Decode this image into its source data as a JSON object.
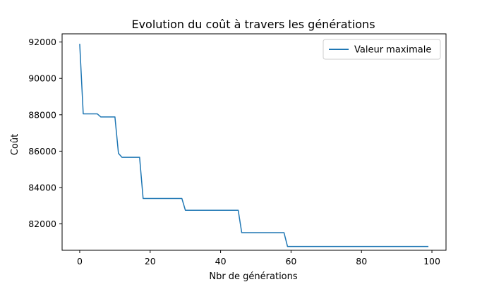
{
  "chart_data": {
    "type": "line",
    "title": "Evolution du coût à travers les générations",
    "xlabel": "Nbr de générations",
    "ylabel": "Coût",
    "xlim": [
      -5,
      104
    ],
    "ylim": [
      80550,
      92450
    ],
    "x_ticks": [
      0,
      20,
      40,
      60,
      80,
      100
    ],
    "x_tick_labels": [
      "0",
      "20",
      "40",
      "60",
      "80",
      "100"
    ],
    "y_ticks": [
      82000,
      84000,
      86000,
      88000,
      90000,
      92000
    ],
    "y_tick_labels": [
      "82000",
      "84000",
      "86000",
      "88000",
      "90000",
      "92000"
    ],
    "grid": false,
    "legend_position": "top-right",
    "series": [
      {
        "name": "Valeur maximale",
        "color": "#1f77b4",
        "x": [
          0,
          1,
          2,
          3,
          4,
          5,
          6,
          7,
          8,
          9,
          10,
          11,
          12,
          13,
          14,
          15,
          16,
          17,
          18,
          19,
          20,
          21,
          22,
          23,
          24,
          25,
          26,
          27,
          28,
          29,
          30,
          31,
          32,
          33,
          34,
          35,
          36,
          37,
          38,
          39,
          40,
          41,
          42,
          43,
          44,
          45,
          46,
          47,
          48,
          49,
          50,
          51,
          52,
          53,
          54,
          55,
          56,
          57,
          58,
          59,
          60,
          61,
          62,
          63,
          64,
          65,
          66,
          67,
          68,
          69,
          70,
          71,
          72,
          73,
          74,
          75,
          76,
          77,
          78,
          79,
          80,
          81,
          82,
          83,
          84,
          85,
          86,
          87,
          88,
          89,
          90,
          91,
          92,
          93,
          94,
          95,
          96,
          97,
          98,
          99
        ],
        "values": [
          91900,
          88050,
          88050,
          88050,
          88050,
          88050,
          87880,
          87880,
          87880,
          87880,
          87880,
          85880,
          85660,
          85660,
          85660,
          85660,
          85660,
          85660,
          83400,
          83400,
          83400,
          83400,
          83400,
          83400,
          83400,
          83400,
          83400,
          83400,
          83400,
          83400,
          82750,
          82750,
          82750,
          82750,
          82750,
          82750,
          82750,
          82750,
          82750,
          82750,
          82750,
          82750,
          82750,
          82750,
          82750,
          82750,
          81520,
          81520,
          81520,
          81520,
          81520,
          81520,
          81520,
          81520,
          81520,
          81520,
          81520,
          81520,
          81520,
          80760,
          80760,
          80760,
          80760,
          80760,
          80760,
          80760,
          80760,
          80760,
          80760,
          80760,
          80760,
          80760,
          80760,
          80760,
          80760,
          80760,
          80760,
          80760,
          80760,
          80760,
          80760,
          80760,
          80760,
          80760,
          80760,
          80760,
          80760,
          80760,
          80760,
          80760,
          80760,
          80760,
          80760,
          80760,
          80760,
          80760,
          80760,
          80760,
          80760,
          80760
        ]
      }
    ]
  }
}
